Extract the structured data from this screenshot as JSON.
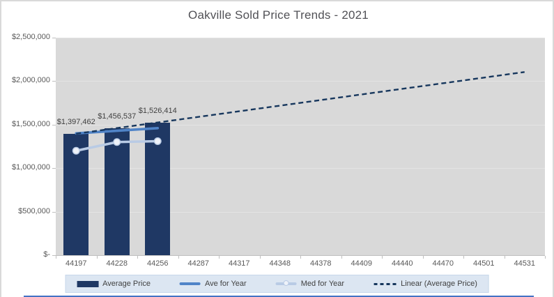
{
  "chart_data": {
    "type": "combo-bar-line",
    "title": "Oakville Sold Price Trends - 2021",
    "categories": [
      "44197",
      "44228",
      "44256",
      "44287",
      "44317",
      "44348",
      "44378",
      "44409",
      "44440",
      "44470",
      "44501",
      "44531"
    ],
    "y_axis": {
      "min": 0,
      "max": 2500000,
      "tick_values": [
        0,
        500000,
        1000000,
        1500000,
        2000000,
        2500000
      ],
      "tick_labels": [
        "$-",
        "$500,000",
        "$1,000,000",
        "$1,500,000",
        "$2,000,000",
        "$2,500,000"
      ]
    },
    "grid": true,
    "legend_position": "bottom",
    "series": [
      {
        "name": "Average Price",
        "type": "bar",
        "color": "#1f3864",
        "values": [
          1397462,
          1456537,
          1526414
        ],
        "data_labels": [
          "$1,397,462",
          "$1,456,537",
          "$1,526,414"
        ]
      },
      {
        "name": "Ave for Year",
        "type": "line",
        "color": "#5084c8",
        "values": [
          1400000,
          1430000,
          1460000
        ],
        "estimated": true
      },
      {
        "name": "Med for Year",
        "type": "line-marker",
        "color": "#b9cbe5",
        "marker_fill": "#eef2f9",
        "values": [
          1200000,
          1300000,
          1310000
        ],
        "estimated": true
      },
      {
        "name": "Linear (Average Price)",
        "type": "trendline",
        "color": "#17375d",
        "dashed": true,
        "x_span": [
          "44197",
          "44531"
        ],
        "values": [
          1396000,
          2105000
        ],
        "estimated": true
      }
    ]
  },
  "colors": {
    "plot_bg": "#d9d9d9",
    "gridline": "#e4e4e4",
    "axis": "#bfbfbf",
    "axis_label": "#595959",
    "data_label": "#404040",
    "title": "#515156",
    "legend_bg": "#dce6f2",
    "legend_border": "#c7d7ea",
    "frame_border": "#d9d9d9",
    "sheet_line": "#4472c4"
  }
}
